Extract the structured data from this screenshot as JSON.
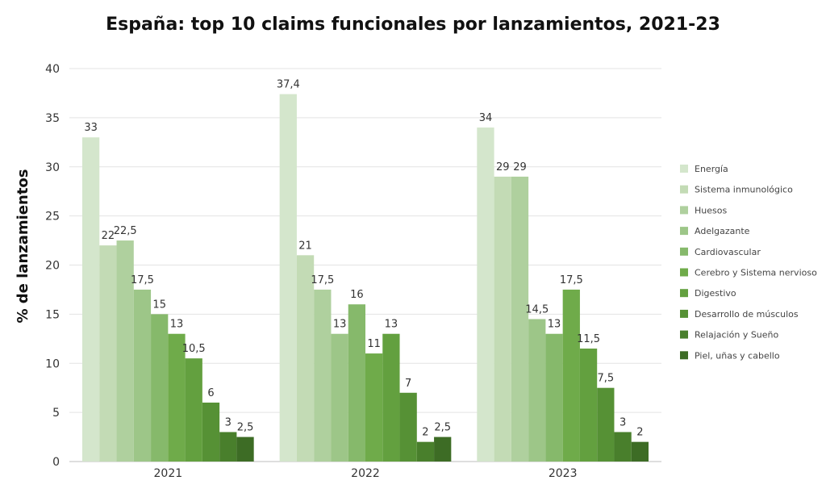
{
  "chart_data": {
    "type": "bar",
    "title": "España: top 10 claims funcionales por lanzamientos, 2021-23",
    "ylabel": "% de lanzamientos",
    "xlabel": "",
    "ylim": [
      0,
      40
    ],
    "yticks": [
      "0",
      "5",
      "10",
      "15",
      "20",
      "25",
      "30",
      "35",
      "40"
    ],
    "grid": true,
    "legend_position": "right",
    "categories": [
      "2021",
      "2022",
      "2023"
    ],
    "series": [
      {
        "name": "Energía",
        "color": "#d4e6cc",
        "values": [
          33,
          37.4,
          34
        ],
        "labels": [
          "33",
          "37,4",
          "34"
        ]
      },
      {
        "name": "Sistema inmunológico",
        "color": "#c3dbb5",
        "values": [
          22,
          21,
          29
        ],
        "labels": [
          "22",
          "21",
          "29"
        ]
      },
      {
        "name": "Huesos",
        "color": "#afd09e",
        "values": [
          22.5,
          17.5,
          29
        ],
        "labels": [
          "22,5",
          "17,5",
          "29"
        ]
      },
      {
        "name": "Adelgazante",
        "color": "#9dc688",
        "values": [
          17.5,
          13,
          14.5
        ],
        "labels": [
          "17,5",
          "13",
          "14,5"
        ]
      },
      {
        "name": "Cardiovascular",
        "color": "#86b96b",
        "values": [
          15,
          16,
          13
        ],
        "labels": [
          "15",
          "16",
          "13"
        ]
      },
      {
        "name": "Cerebro y Sistema nervioso",
        "color": "#6fab4a",
        "values": [
          13,
          11,
          17.5
        ],
        "labels": [
          "13",
          "11",
          "17,5"
        ]
      },
      {
        "name": "Digestivo",
        "color": "#63a03f",
        "values": [
          10.5,
          13,
          11.5
        ],
        "labels": [
          "10,5",
          "13",
          "11,5"
        ]
      },
      {
        "name": "Desarrollo de músculos",
        "color": "#569135",
        "values": [
          6,
          7,
          7.5
        ],
        "labels": [
          "6",
          "7",
          "7,5"
        ]
      },
      {
        "name": "Relajación y Sueño",
        "color": "#497f2c",
        "values": [
          3,
          2,
          3
        ],
        "labels": [
          "3",
          "2",
          "3"
        ]
      },
      {
        "name": "Piel, uñas y cabello",
        "color": "#3d6c25",
        "values": [
          2.5,
          2.5,
          2
        ],
        "labels": [
          "2,5",
          "2,5",
          "2"
        ]
      }
    ]
  }
}
